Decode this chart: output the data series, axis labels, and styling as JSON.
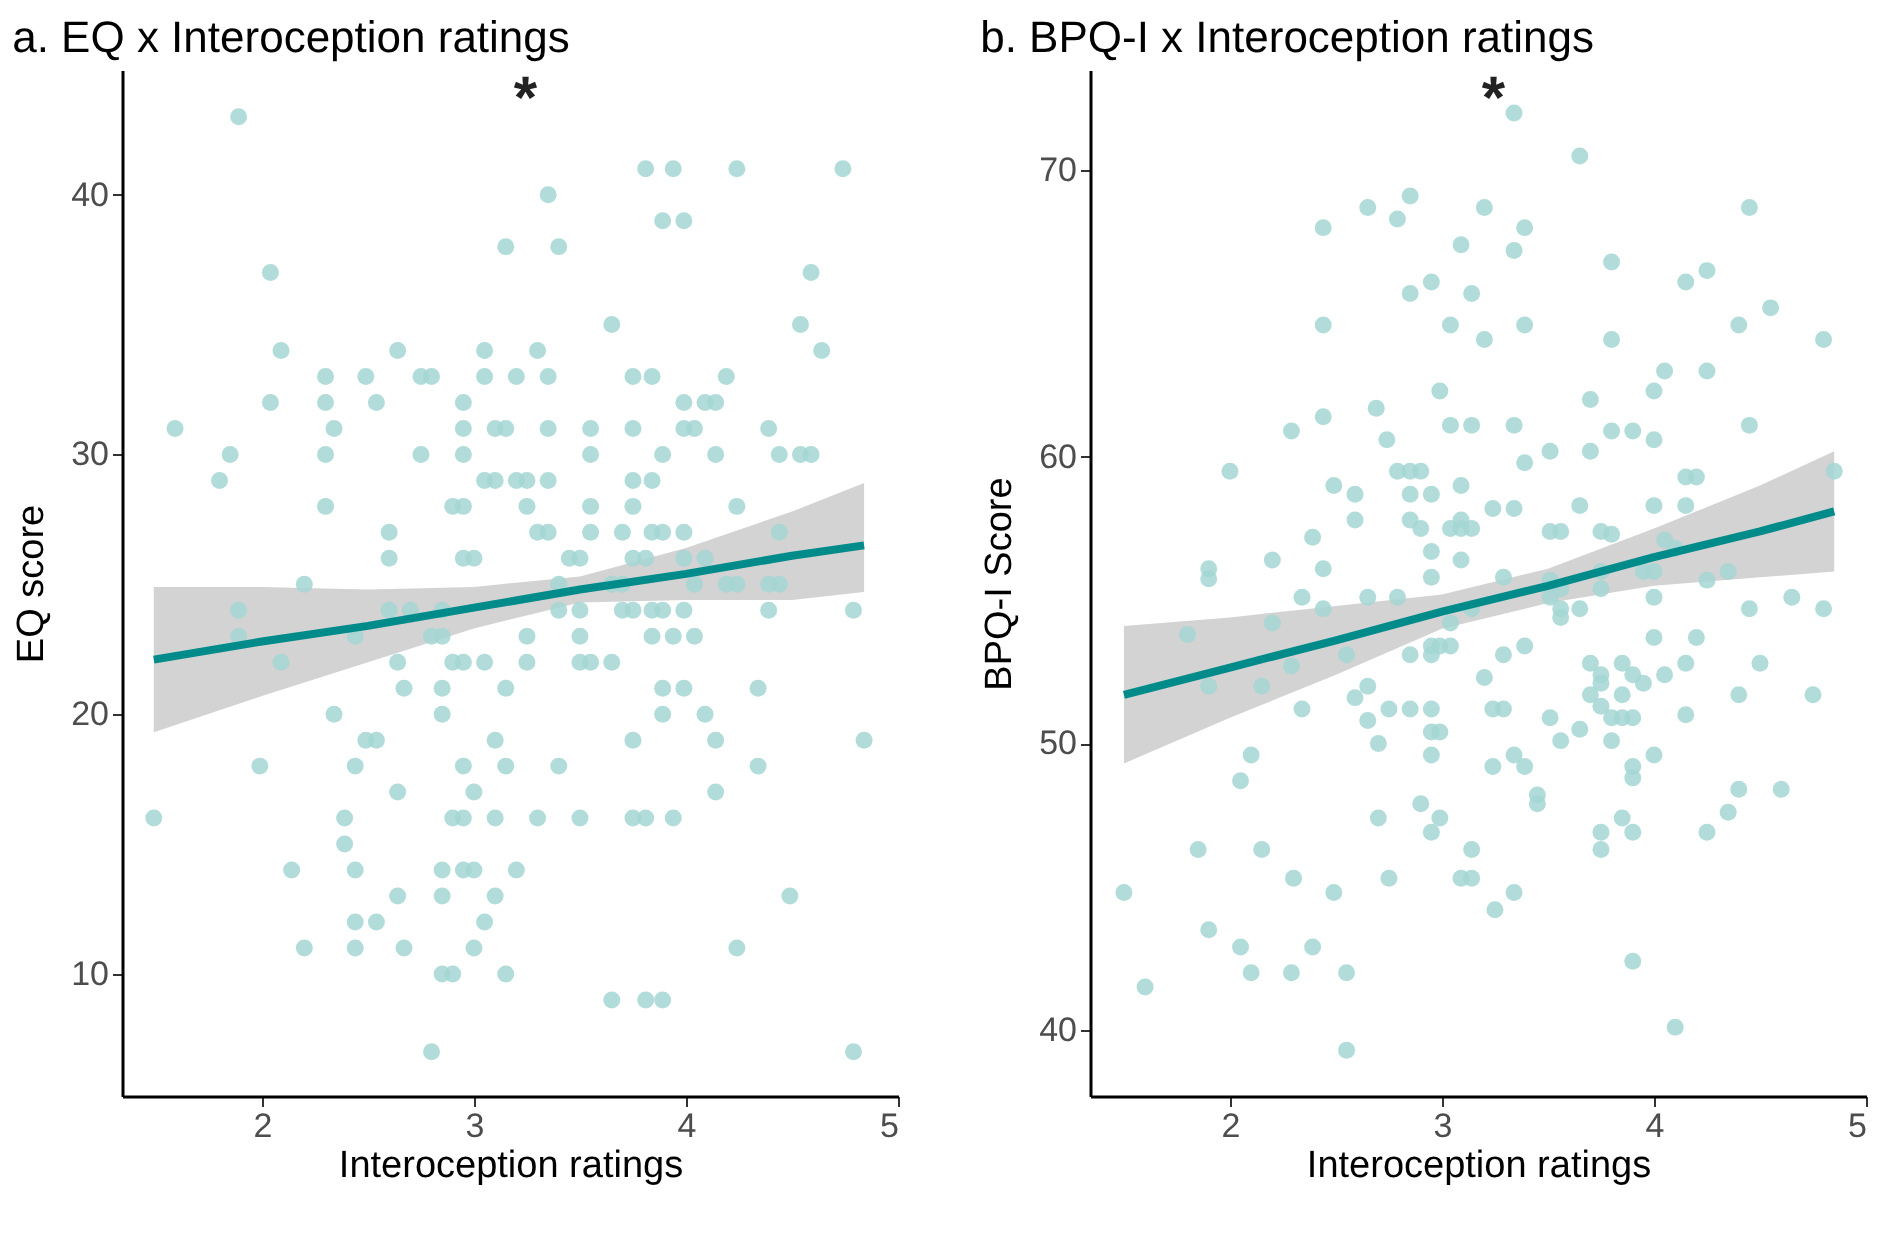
{
  "chart_data": [
    {
      "type": "scatter",
      "title": "a. EQ x Interoception ratings",
      "xlabel": "Interoception ratings",
      "ylabel": "EQ score",
      "xlim": [
        1.34,
        5
      ],
      "xticks": [
        2,
        3,
        4,
        5
      ],
      "ylim": [
        5.3,
        44.8
      ],
      "yticks": [
        10,
        20,
        30,
        40
      ],
      "grid": false,
      "annotations": [
        "*"
      ],
      "series": [
        {
          "marker": "circle",
          "color": "#a3d6d3",
          "x": [
            1.89,
            2.04,
            2.09,
            1.59,
            2.04,
            2.3,
            2.49,
            2.3,
            2.54,
            2.34,
            1.85,
            2.3,
            1.8,
            2.3,
            2.64,
            2.6,
            2.6,
            2.2,
            1.89,
            1.89,
            2.09,
            2.44,
            2.6,
            2.64,
            2.67,
            2.34,
            2.49,
            2.54,
            1.99,
            2.44,
            2.64,
            1.49,
            2.39,
            2.39,
            2.14,
            2.44,
            2.64,
            2.44,
            2.54,
            2.2,
            2.44,
            2.67,
            3.35,
            3.15,
            3.4,
            3.65,
            3.05,
            3.3,
            2.75,
            2.8,
            3.05,
            3.2,
            3.35,
            3.75,
            2.95,
            2.95,
            3.1,
            3.15,
            3.35,
            3.55,
            3.75,
            2.75,
            2.95,
            3.55,
            3.05,
            3.1,
            3.2,
            3.25,
            3.35,
            3.75,
            2.9,
            2.95,
            3.25,
            3.55,
            3.75,
            3.3,
            3.35,
            3.55,
            3.7,
            2.95,
            3.0,
            3.45,
            3.5,
            3.75,
            3.4,
            3.65,
            3.7,
            2.7,
            2.85,
            3.4,
            3.5,
            3.7,
            3.75,
            2.8,
            2.85,
            3.25,
            3.5,
            2.9,
            2.95,
            3.05,
            3.25,
            3.5,
            3.55,
            3.65,
            2.85,
            3.15,
            2.85,
            3.1,
            3.75,
            2.95,
            3.15,
            3.4,
            3.0,
            2.9,
            2.95,
            3.1,
            3.3,
            3.5,
            3.75,
            2.85,
            2.95,
            3.0,
            3.2,
            2.85,
            3.1,
            3.05,
            3.0,
            2.85,
            2.9,
            3.15,
            3.65,
            2.8,
            3.81,
            3.94,
            4.24,
            4.74,
            3.89,
            3.99,
            4.59,
            4.54,
            4.64,
            3.84,
            4.19,
            3.99,
            4.09,
            4.14,
            3.99,
            4.04,
            4.39,
            3.89,
            4.14,
            4.44,
            4.54,
            4.59,
            3.84,
            4.24,
            3.84,
            3.89,
            3.99,
            4.44,
            3.81,
            3.99,
            4.09,
            4.04,
            4.19,
            4.24,
            4.39,
            4.44,
            3.84,
            3.89,
            3.99,
            4.39,
            4.79,
            3.84,
            3.94,
            4.04,
            3.89,
            3.99,
            4.34,
            3.89,
            4.09,
            4.14,
            4.84,
            4.34,
            4.14,
            3.94,
            3.81,
            4.49,
            4.24,
            3.81,
            3.89,
            4.79
          ],
          "values": [
            43,
            37,
            34,
            31,
            32,
            33,
            33,
            32,
            32,
            31,
            30,
            30,
            29,
            28,
            34,
            27,
            26,
            25,
            24,
            23,
            22,
            23,
            24,
            22,
            21,
            20,
            19,
            19,
            18,
            18,
            17,
            16,
            16,
            15,
            14,
            14,
            13,
            12,
            12,
            11,
            11,
            11,
            40,
            38,
            38,
            35,
            34,
            34,
            33,
            33,
            33,
            33,
            33,
            33,
            32,
            31,
            31,
            31,
            31,
            31,
            31,
            30,
            30,
            30,
            29,
            29,
            29,
            29,
            29,
            29,
            28,
            28,
            28,
            28,
            28,
            27,
            27,
            27,
            27,
            26,
            26,
            26,
            26,
            26,
            25,
            25,
            25,
            24,
            24,
            24,
            24,
            24,
            24,
            23,
            23,
            23,
            23,
            22,
            22,
            22,
            22,
            22,
            22,
            22,
            21,
            21,
            20,
            19,
            19,
            18,
            18,
            18,
            17,
            16,
            16,
            16,
            16,
            16,
            16,
            14,
            14,
            14,
            14,
            13,
            13,
            12,
            11,
            10,
            10,
            10,
            9,
            7,
            41,
            41,
            41,
            41,
            39,
            39,
            37,
            35,
            34,
            33,
            33,
            32,
            32,
            32,
            31,
            31,
            31,
            30,
            30,
            30,
            30,
            30,
            29,
            28,
            27,
            27,
            27,
            27,
            26,
            26,
            26,
            25,
            25,
            25,
            25,
            25,
            24,
            24,
            24,
            24,
            24,
            23,
            23,
            23,
            21,
            21,
            21,
            20,
            20,
            19,
            19,
            18,
            17,
            16,
            16,
            13,
            11,
            9,
            9,
            7
          ]
        },
        {
          "type": "line",
          "color": "#008b8b",
          "x": [
            1.49,
            2.0,
            2.5,
            3.0,
            3.5,
            4.0,
            4.5,
            4.84
          ],
          "values": [
            22.1,
            22.8,
            23.4,
            24.1,
            24.8,
            25.4,
            26.1,
            26.5
          ],
          "lower": [
            19.3,
            20.7,
            22.0,
            23.3,
            24.3,
            24.4,
            24.4,
            24.7
          ],
          "upper": [
            24.9,
            24.9,
            24.8,
            24.9,
            25.3,
            26.4,
            27.8,
            28.9
          ]
        }
      ]
    },
    {
      "type": "scatter",
      "title": "b. BPQ-I x Interoception ratings",
      "xlabel": "Interoception ratings",
      "ylabel": "BPQ-I Score",
      "xlim": [
        1.34,
        5
      ],
      "xticks": [
        2,
        3,
        4,
        5
      ],
      "ylim": [
        37.7,
        73.5
      ],
      "yticks": [
        40,
        50,
        60,
        70
      ],
      "grid": false,
      "annotations": [
        "*"
      ],
      "series": [
        {
          "marker": "circle",
          "color": "#a3d6d3",
          "x": [
            2.0,
            1.9,
            1.9,
            2.2,
            1.8,
            2.2,
            1.9,
            2.15,
            2.1,
            2.05,
            1.85,
            2.15,
            1.5,
            1.9,
            2.05,
            2.1,
            1.6,
            3.34,
            2.65,
            2.85,
            2.79,
            3.2,
            2.44,
            3.39,
            3.09,
            3.34,
            2.85,
            2.95,
            3.14,
            2.44,
            3.04,
            3.2,
            3.39,
            2.99,
            2.29,
            2.44,
            2.69,
            3.04,
            3.14,
            3.34,
            2.74,
            3.39,
            2.79,
            2.85,
            2.9,
            2.49,
            2.59,
            2.85,
            2.95,
            3.09,
            2.59,
            2.85,
            2.9,
            3.09,
            3.04,
            3.14,
            3.09,
            3.24,
            3.34,
            2.39,
            2.95,
            2.44,
            3.09,
            2.95,
            2.34,
            2.65,
            2.79,
            3.29,
            2.44,
            2.29,
            2.55,
            3.04,
            3.14,
            2.85,
            2.95,
            2.99,
            3.04,
            2.95,
            3.2,
            3.29,
            3.39,
            2.65,
            2.34,
            2.59,
            2.65,
            2.75,
            2.85,
            2.95,
            2.7,
            2.95,
            2.99,
            2.95,
            3.24,
            3.29,
            3.24,
            3.34,
            3.39,
            2.9,
            2.7,
            2.95,
            2.99,
            3.14,
            2.3,
            2.75,
            3.09,
            3.14,
            2.49,
            3.25,
            3.34,
            2.39,
            2.29,
            2.55,
            2.55,
            3.65,
            4.45,
            3.8,
            4.15,
            4.25,
            4.55,
            4.4,
            3.8,
            4.8,
            4.05,
            4.25,
            4.0,
            3.7,
            4.45,
            3.8,
            3.9,
            4.0,
            3.51,
            3.7,
            4.15,
            4.2,
            4.85,
            3.65,
            4.0,
            4.15,
            3.51,
            3.56,
            3.75,
            3.8,
            4.05,
            4.1,
            3.75,
            3.95,
            4.0,
            4.35,
            3.51,
            4.25,
            3.75,
            3.56,
            3.51,
            4.0,
            3.56,
            3.65,
            3.56,
            4.45,
            4.65,
            4.8,
            4.0,
            4.2,
            3.7,
            3.85,
            4.15,
            4.5,
            3.75,
            3.9,
            3.75,
            3.95,
            4.05,
            3.7,
            3.85,
            4.4,
            4.75,
            3.75,
            4.15,
            3.51,
            3.8,
            3.85,
            3.9,
            3.65,
            3.56,
            3.8,
            4.0,
            3.9,
            3.9,
            3.45,
            3.45,
            4.4,
            4.6,
            4.35,
            3.85,
            3.75,
            3.9,
            4.25,
            3.75,
            3.9,
            4.1
          ],
          "values": [
            59.5,
            56.1,
            55.75,
            56.4,
            53.8,
            54.2,
            52.0,
            52.0,
            49.6,
            48.7,
            46.3,
            46.3,
            44.8,
            43.5,
            42.9,
            42.0,
            41.5,
            72.0,
            68.7,
            69.1,
            68.3,
            68.7,
            68.0,
            68.0,
            67.4,
            67.2,
            65.7,
            66.1,
            65.7,
            64.6,
            64.6,
            64.1,
            64.6,
            62.3,
            60.9,
            61.4,
            61.7,
            61.1,
            61.1,
            61.1,
            60.6,
            59.8,
            59.5,
            59.5,
            59.5,
            59.0,
            58.7,
            58.7,
            58.7,
            59.0,
            57.8,
            57.8,
            57.5,
            57.8,
            57.5,
            57.5,
            57.5,
            58.2,
            58.2,
            57.2,
            56.7,
            56.1,
            56.4,
            55.8,
            55.1,
            55.1,
            55.1,
            55.8,
            54.7,
            52.7,
            53.1,
            54.2,
            54.7,
            53.1,
            53.4,
            53.4,
            53.4,
            53.1,
            52.3,
            53.1,
            53.4,
            52.0,
            51.2,
            51.6,
            50.8,
            51.2,
            51.2,
            51.2,
            50.0,
            50.4,
            50.4,
            49.6,
            51.2,
            51.2,
            49.2,
            49.6,
            49.2,
            47.9,
            47.4,
            46.9,
            47.4,
            46.3,
            45.3,
            45.3,
            45.3,
            45.3,
            44.8,
            44.2,
            44.8,
            42.9,
            42.0,
            42.0,
            39.3,
            70.5,
            68.7,
            66.8,
            66.1,
            66.5,
            65.2,
            64.6,
            64.1,
            64.1,
            63.0,
            63.0,
            62.3,
            62.0,
            61.1,
            60.9,
            60.9,
            60.6,
            60.2,
            60.2,
            59.3,
            59.3,
            59.5,
            58.3,
            58.3,
            58.3,
            57.4,
            57.4,
            57.4,
            57.3,
            57.1,
            56.8,
            56.0,
            56.0,
            56.0,
            56.0,
            55.7,
            55.7,
            55.4,
            55.4,
            55.1,
            55.1,
            54.7,
            54.7,
            54.4,
            54.7,
            55.1,
            54.7,
            53.7,
            53.7,
            52.8,
            52.8,
            52.8,
            52.8,
            52.4,
            52.4,
            52.1,
            52.1,
            52.4,
            51.7,
            51.7,
            51.7,
            51.7,
            51.3,
            51.0,
            50.9,
            50.9,
            50.9,
            50.9,
            50.5,
            50.1,
            50.1,
            49.6,
            49.2,
            48.8,
            48.2,
            47.9,
            48.4,
            48.4,
            47.6,
            47.4,
            46.9,
            46.9,
            46.9,
            46.3,
            42.4,
            40.1
          ]
        },
        {
          "type": "line",
          "color": "#008b8b",
          "x": [
            1.5,
            2.0,
            2.5,
            3.0,
            3.5,
            4.0,
            4.5,
            4.85
          ],
          "values": [
            51.7,
            52.65,
            53.6,
            54.6,
            55.5,
            56.5,
            57.4,
            58.1
          ],
          "lower": [
            49.3,
            50.9,
            52.4,
            54.0,
            54.9,
            55.5,
            55.8,
            56.0
          ],
          "upper": [
            54.1,
            54.4,
            54.8,
            55.2,
            56.1,
            57.5,
            59.0,
            60.2
          ]
        }
      ]
    }
  ]
}
